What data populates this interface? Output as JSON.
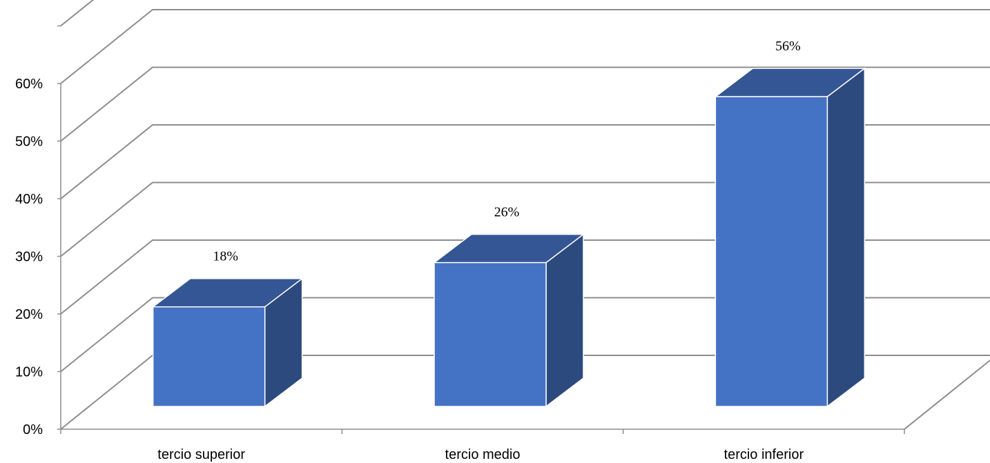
{
  "chart_data": {
    "type": "bar",
    "categories": [
      "tercio superior",
      "tercio medio",
      "tercio inferior"
    ],
    "values": [
      0.18,
      0.26,
      0.56
    ],
    "data_labels": [
      "18%",
      "26%",
      "56%"
    ],
    "y_ticks": [
      0,
      0.1,
      0.2,
      0.3,
      0.4,
      0.5,
      0.6
    ],
    "y_tick_labels": [
      "0%",
      "10%",
      "20%",
      "30%",
      "40%",
      "50%",
      "60%"
    ],
    "ylim": [
      0,
      0.7
    ],
    "grid": true,
    "legend": "none",
    "three_d": true,
    "colors": {
      "bar_front": "#4472c4",
      "bar_top": "#355694",
      "bar_side": "#2c4a7e",
      "grid": "#8c8c8c"
    }
  }
}
